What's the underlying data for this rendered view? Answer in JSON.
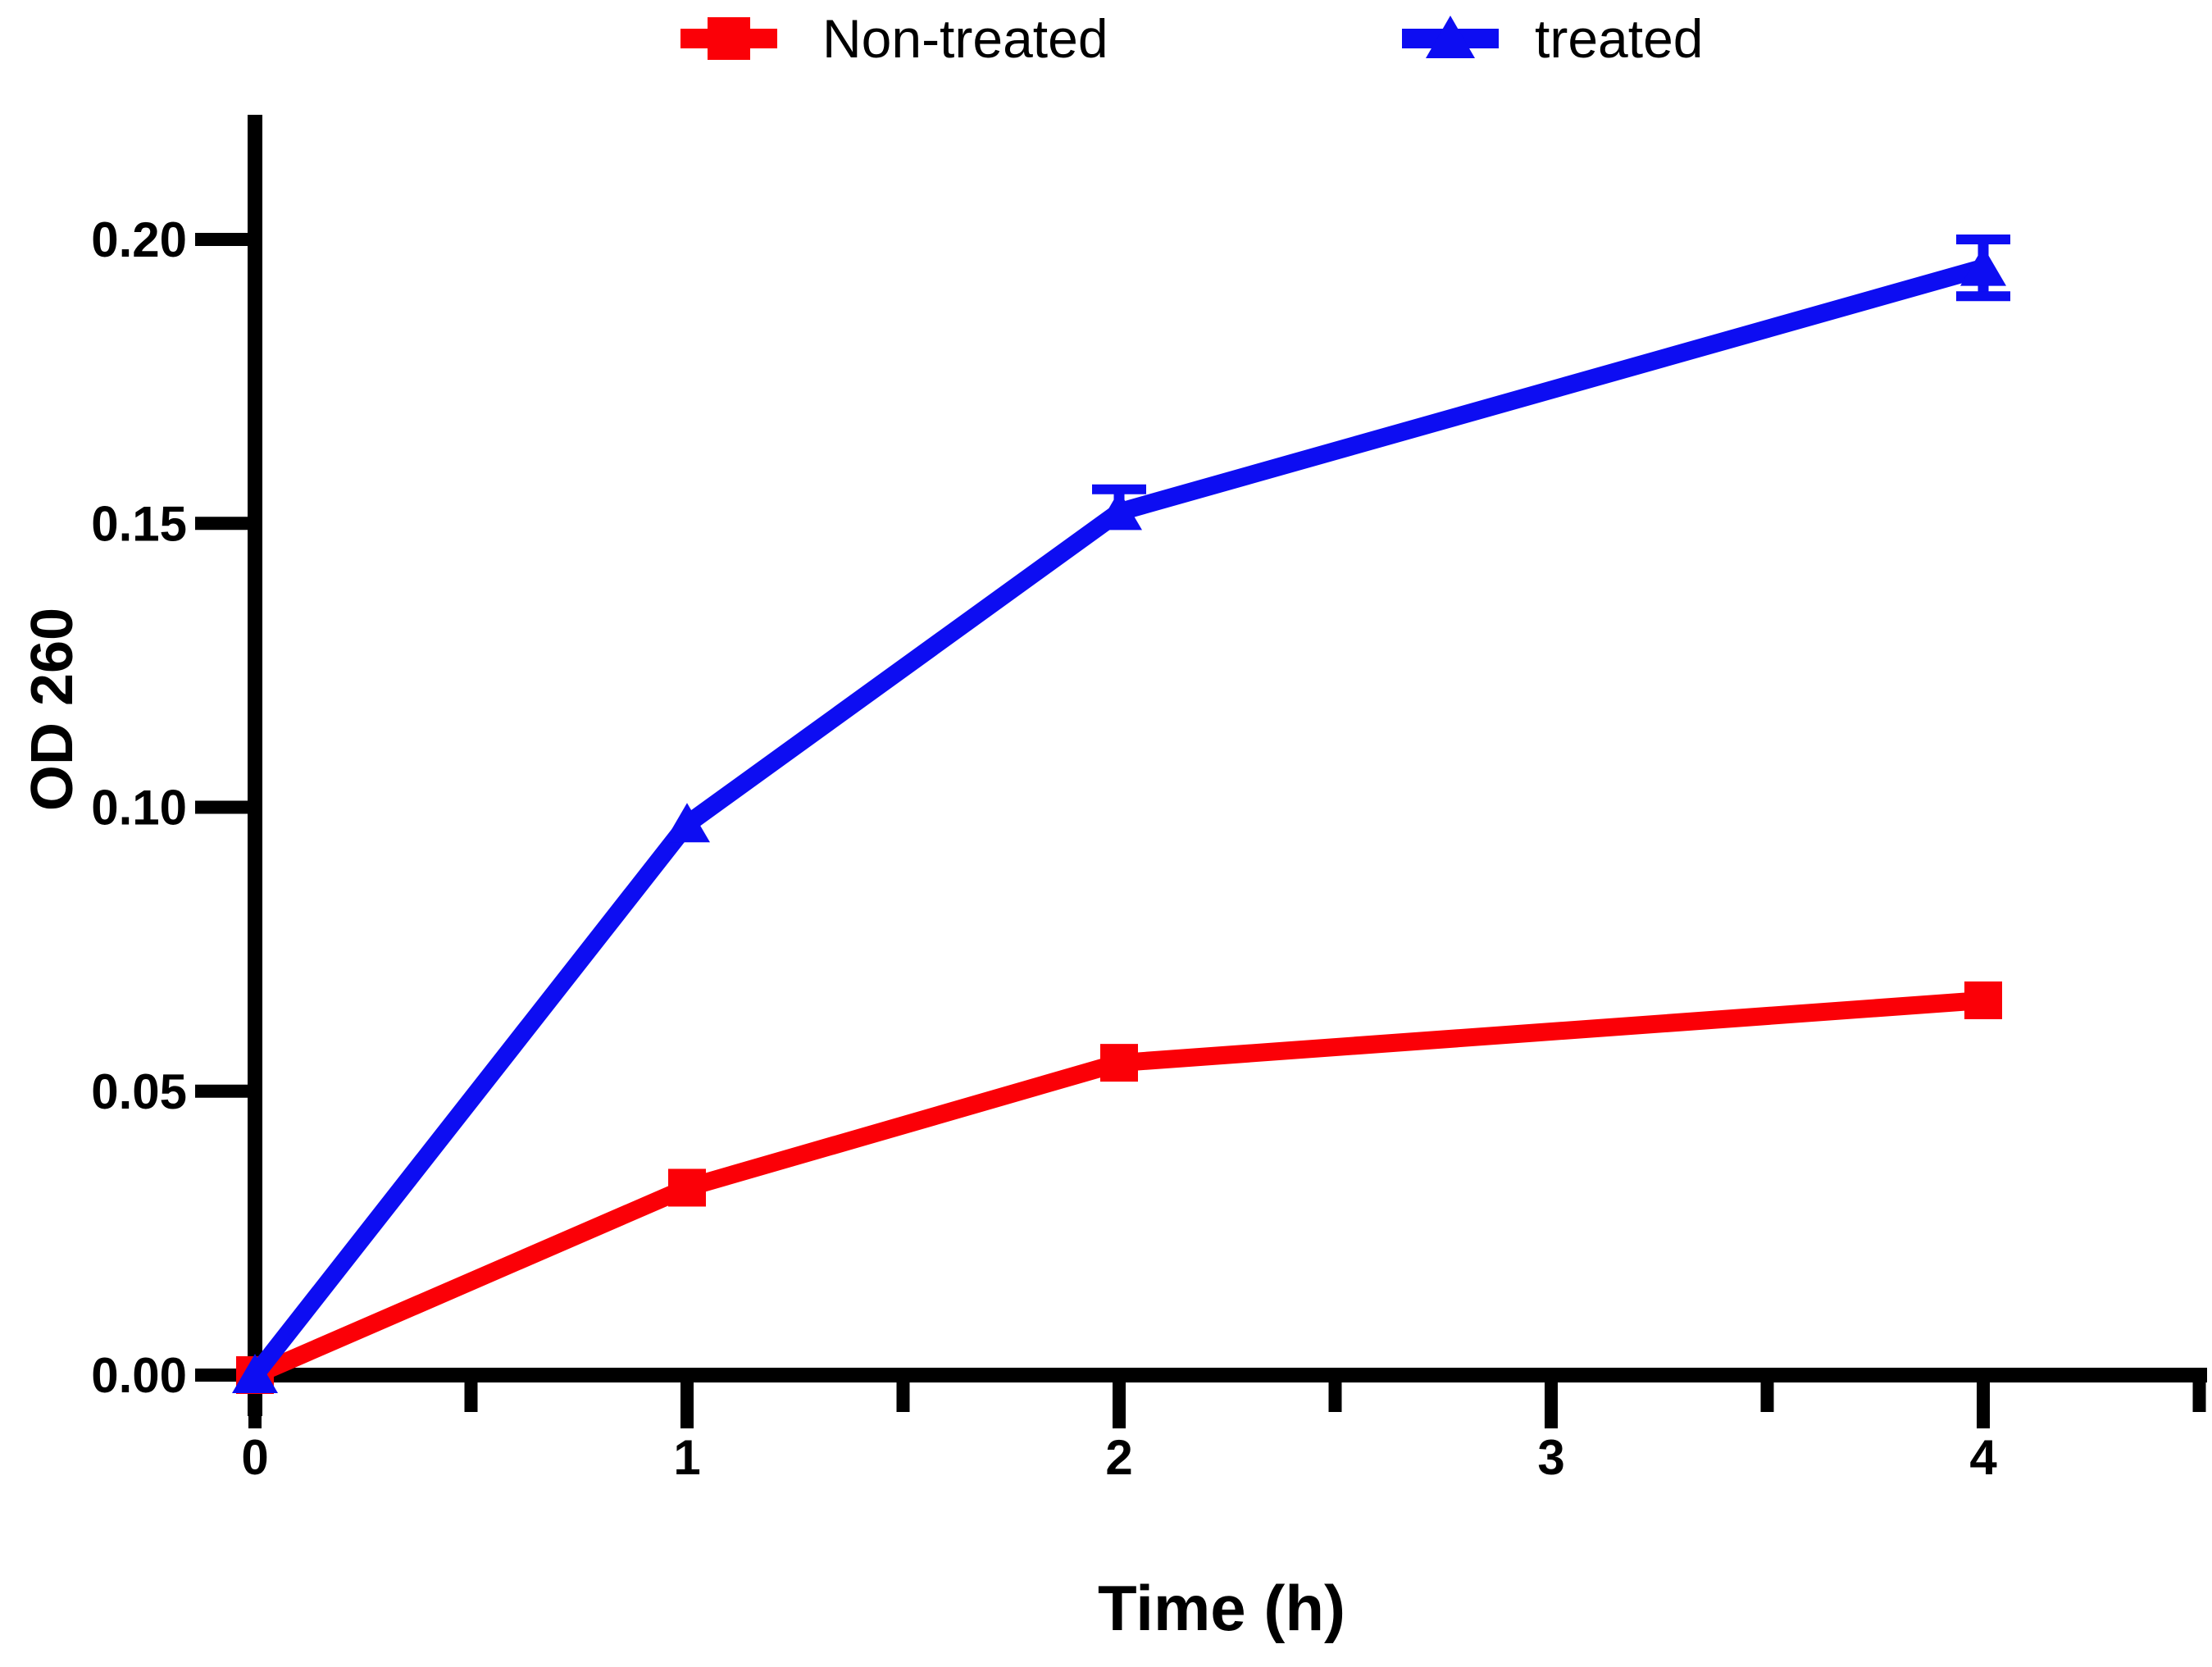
{
  "figure": {
    "background": "#ffffff",
    "text_color": "#000000",
    "axis_color": "#000000"
  },
  "chart_data": {
    "type": "line",
    "title": "",
    "xlabel": "Time (h)",
    "ylabel": "OD 260",
    "xlim": [
      0,
      4.52
    ],
    "ylim": [
      0,
      0.222
    ],
    "grid": false,
    "legend_position": "top",
    "x_major_ticks": [
      0,
      1,
      2,
      3,
      4
    ],
    "x_tick_labels": [
      "0",
      "1",
      "2",
      "3",
      "4"
    ],
    "x_minor_ticks": [
      0.5,
      1.5,
      2.5,
      3.5,
      4.5
    ],
    "y_major_ticks": [
      0,
      0.05,
      0.1,
      0.15,
      0.2
    ],
    "y_tick_labels": [
      "0.00",
      "0.05",
      "0.10",
      "0.15",
      "0.20"
    ],
    "series": [
      {
        "name": "Non-treated",
        "color": "#fb0007",
        "marker": "square",
        "x": [
          0,
          1,
          2,
          4
        ],
        "y": [
          0.0,
          0.033,
          0.055,
          0.066
        ],
        "error_up": [
          0,
          0,
          0,
          0
        ],
        "error_down": [
          0,
          0,
          0,
          0
        ]
      },
      {
        "name": "treated",
        "color": "#0d0df2",
        "marker": "triangle",
        "x": [
          0,
          1,
          2,
          4
        ],
        "y": [
          0.0,
          0.097,
          0.152,
          0.195
        ],
        "error_up": [
          0,
          0,
          0.004,
          0.005
        ],
        "error_down": [
          0,
          0,
          0,
          0.005
        ]
      }
    ]
  }
}
